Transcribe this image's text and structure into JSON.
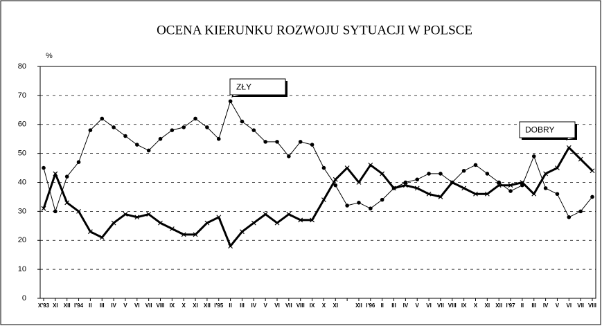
{
  "chart_data": {
    "type": "line",
    "title": "OCENA KIERUNKU ROZWOJU SYTUACJI W POLSCE",
    "y_axis_label": "%",
    "categories": [
      "X'93",
      "XI",
      "XII",
      "I'94",
      "II",
      "III",
      "IV",
      "V",
      "VI",
      "VII",
      "VIII",
      "IX",
      "X",
      "XI",
      "XII",
      "I'95",
      "II",
      "III",
      "IV",
      "V",
      "VI",
      "VII",
      "VIII",
      "IX",
      "X",
      "XI",
      null,
      "XII",
      "I'96",
      "II",
      "III",
      "IV",
      "V",
      "VI",
      "VII",
      "VIII",
      "IX",
      "X",
      "XI",
      "XII",
      "I'97",
      "II",
      "III",
      "IV",
      "V",
      "VI",
      "VII",
      "VIII"
    ],
    "series": [
      {
        "name": "ZŁY",
        "color": "#000000",
        "marker": "dot",
        "values": [
          45,
          30,
          42,
          47,
          58,
          62,
          59,
          56,
          53,
          51,
          55,
          58,
          59,
          62,
          59,
          55,
          68,
          61,
          58,
          54,
          54,
          49,
          54,
          53,
          45,
          39,
          32,
          33,
          31,
          34,
          38,
          40,
          41,
          43,
          43,
          40,
          44,
          46,
          43,
          40,
          37,
          39,
          49,
          38,
          36,
          28,
          30,
          35
        ]
      },
      {
        "name": "DOBRY",
        "color": "#000000",
        "marker": "cross",
        "values": [
          31,
          43,
          33,
          30,
          23,
          21,
          26,
          29,
          28,
          29,
          26,
          24,
          22,
          22,
          26,
          28,
          18,
          23,
          26,
          29,
          26,
          29,
          27,
          27,
          34,
          41,
          45,
          40,
          46,
          43,
          38,
          39,
          38,
          36,
          35,
          40,
          38,
          36,
          36,
          39,
          39,
          40,
          36,
          43,
          45,
          52,
          48,
          44
        ]
      }
    ],
    "ylim": [
      0,
      80
    ],
    "yticks": [
      0,
      10,
      20,
      30,
      40,
      50,
      60,
      70,
      80
    ],
    "grid": true
  }
}
